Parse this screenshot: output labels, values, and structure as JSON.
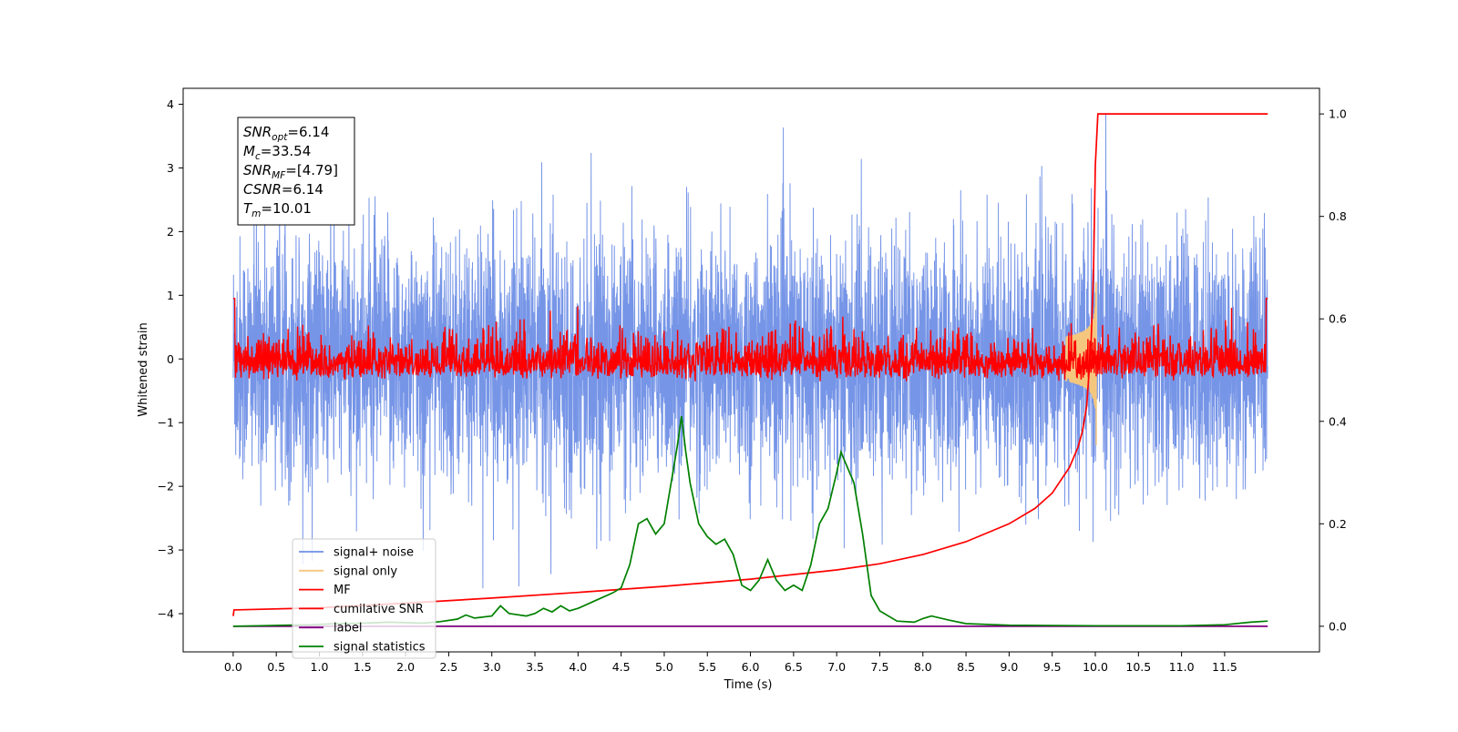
{
  "chart_data": {
    "type": "line",
    "xlabel": "Time (s)",
    "ylabel": "Whitened strain",
    "title": "",
    "xlim": [
      -0.58,
      12.6
    ],
    "ylim_left": [
      -4.6,
      4.25
    ],
    "ylim_right": [
      -0.05,
      1.05
    ],
    "x_ticks": [
      0.0,
      0.5,
      1.0,
      1.5,
      2.0,
      2.5,
      3.0,
      3.5,
      4.0,
      4.5,
      5.0,
      5.5,
      6.0,
      6.5,
      7.0,
      7.5,
      8.0,
      8.5,
      9.0,
      9.5,
      10.0,
      10.5,
      11.0,
      11.5
    ],
    "x_tick_labels": [
      "0.0",
      "0.5",
      "1.0",
      "1.5",
      "2.0",
      "2.5",
      "3.0",
      "3.5",
      "4.0",
      "4.5",
      "5.0",
      "5.5",
      "6.0",
      "6.5",
      "7.0",
      "7.5",
      "8.0",
      "8.5",
      "9.0",
      "9.5",
      "10.0",
      "10.5",
      "11.0",
      "11.5"
    ],
    "y_left_ticks": [
      -4,
      -3,
      -2,
      -1,
      0,
      1,
      2,
      3,
      4
    ],
    "y_left_tick_labels": [
      "−4",
      "−3",
      "−2",
      "−1",
      "0",
      "1",
      "2",
      "3",
      "4"
    ],
    "y_right_ticks": [
      0.0,
      0.2,
      0.4,
      0.6,
      0.8,
      1.0
    ],
    "y_right_tick_labels": [
      "0.0",
      "0.2",
      "0.4",
      "0.6",
      "0.8",
      "1.0"
    ],
    "legend_position": "lower-left",
    "grid": false,
    "stats_box": [
      {
        "main": "SNR",
        "sub": "opt",
        "value": "=6.14"
      },
      {
        "main": "M",
        "sub": "c",
        "value": "=33.54"
      },
      {
        "main": "SNR",
        "sub": "MF",
        "value": "=[4.79]"
      },
      {
        "main": "CSNR",
        "sub": "",
        "value": "=6.14"
      },
      {
        "main": "T",
        "sub": "m",
        "value": "=10.01"
      }
    ],
    "series": [
      {
        "name": "signal+ noise",
        "axis": "left",
        "color": "#6f8fe6",
        "style": "noise",
        "x_range": [
          0,
          12.0
        ],
        "amplitude_sd": 1.0,
        "approx_range": [
          -3.6,
          3.85
        ]
      },
      {
        "name": "signal only",
        "axis": "left",
        "color": "#f5c77e",
        "style": "chirp",
        "chirp_time": 10.01,
        "peak_amplitude": 1.3
      },
      {
        "name": "MF",
        "axis": "left",
        "color": "#ff0000",
        "style": "noise",
        "x_range": [
          0,
          12.0
        ],
        "approx_range": [
          -0.35,
          1.0
        ]
      },
      {
        "name": "cumilative SNR",
        "axis": "right",
        "color": "#ff0000",
        "x": [
          0.0,
          0.01,
          1.0,
          2.0,
          3.0,
          4.0,
          5.0,
          6.0,
          7.0,
          7.5,
          8.0,
          8.5,
          9.0,
          9.3,
          9.5,
          9.7,
          9.8,
          9.85,
          9.9,
          9.95,
          9.98,
          10.0,
          10.03,
          11.0,
          12.0
        ],
        "y": [
          0.02,
          0.032,
          0.036,
          0.045,
          0.055,
          0.066,
          0.078,
          0.092,
          0.11,
          0.122,
          0.14,
          0.165,
          0.2,
          0.23,
          0.26,
          0.31,
          0.35,
          0.38,
          0.43,
          0.55,
          0.7,
          0.9,
          1.0,
          1.0,
          1.0
        ]
      },
      {
        "name": "label",
        "axis": "right",
        "color": "#800080",
        "x": [
          0.0,
          12.0
        ],
        "y": [
          0.0,
          0.0
        ]
      },
      {
        "name": "signal statistics",
        "axis": "right",
        "color": "#008000",
        "x": [
          0.0,
          0.3,
          0.6,
          0.9,
          1.2,
          1.5,
          1.8,
          2.0,
          2.2,
          2.4,
          2.6,
          2.7,
          2.8,
          3.0,
          3.1,
          3.2,
          3.4,
          3.5,
          3.6,
          3.7,
          3.8,
          3.9,
          4.0,
          4.2,
          4.4,
          4.5,
          4.6,
          4.7,
          4.8,
          4.9,
          5.0,
          5.1,
          5.15,
          5.2,
          5.25,
          5.3,
          5.4,
          5.5,
          5.6,
          5.7,
          5.8,
          5.9,
          6.0,
          6.1,
          6.2,
          6.3,
          6.4,
          6.5,
          6.6,
          6.7,
          6.8,
          6.9,
          7.0,
          7.05,
          7.1,
          7.2,
          7.3,
          7.4,
          7.5,
          7.7,
          7.9,
          8.0,
          8.1,
          8.3,
          8.5,
          9.0,
          10.0,
          11.0,
          11.5,
          11.8,
          12.0
        ],
        "y": [
          0.0,
          0.001,
          0.002,
          0.003,
          0.005,
          0.006,
          0.008,
          0.007,
          0.006,
          0.009,
          0.014,
          0.022,
          0.016,
          0.02,
          0.04,
          0.025,
          0.02,
          0.025,
          0.035,
          0.028,
          0.04,
          0.03,
          0.035,
          0.05,
          0.065,
          0.075,
          0.12,
          0.2,
          0.21,
          0.18,
          0.2,
          0.3,
          0.35,
          0.41,
          0.34,
          0.28,
          0.2,
          0.175,
          0.16,
          0.17,
          0.14,
          0.08,
          0.07,
          0.09,
          0.13,
          0.09,
          0.07,
          0.08,
          0.07,
          0.12,
          0.2,
          0.23,
          0.3,
          0.34,
          0.32,
          0.28,
          0.18,
          0.06,
          0.03,
          0.01,
          0.008,
          0.015,
          0.02,
          0.012,
          0.005,
          0.002,
          0.001,
          0.001,
          0.003,
          0.008,
          0.01
        ]
      }
    ]
  }
}
